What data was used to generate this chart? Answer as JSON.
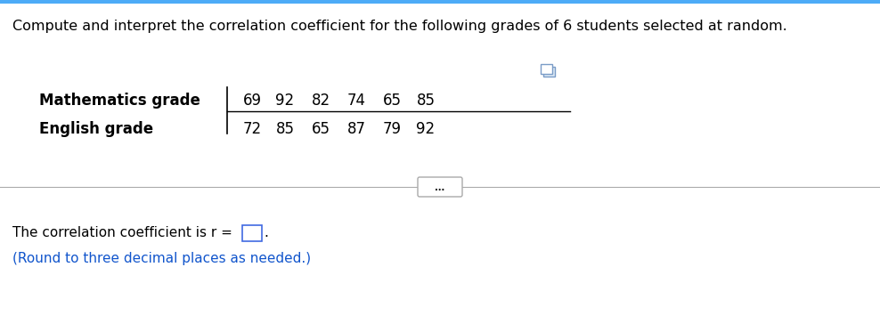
{
  "title": "Compute and interpret the correlation coefficient for the following grades of 6 students selected at random.",
  "title_color": "#000000",
  "title_fontsize": 11.5,
  "row1_label": "Mathematics grade",
  "row2_label": "English grade",
  "row1_values": [
    69,
    92,
    82,
    74,
    65,
    85
  ],
  "row2_values": [
    72,
    85,
    65,
    87,
    79,
    92
  ],
  "label_fontsize": 12,
  "value_fontsize": 12,
  "bottom_text1": "The correlation coefficient is r =",
  "bottom_text2": ".",
  "bottom_text3": "(Round to three decimal places as needed.)",
  "bottom_color": "#1155CC",
  "text_color": "#000000",
  "separator_color": "#aaaaaa",
  "divider_color": "#000000",
  "bg_color": "#ffffff",
  "top_bar_color": "#4dabf7",
  "dots_text": "...",
  "copy_icon_color": "#7a9cc7",
  "copy_icon_bg": "#dce8f5",
  "input_box_color": "#4169e1"
}
